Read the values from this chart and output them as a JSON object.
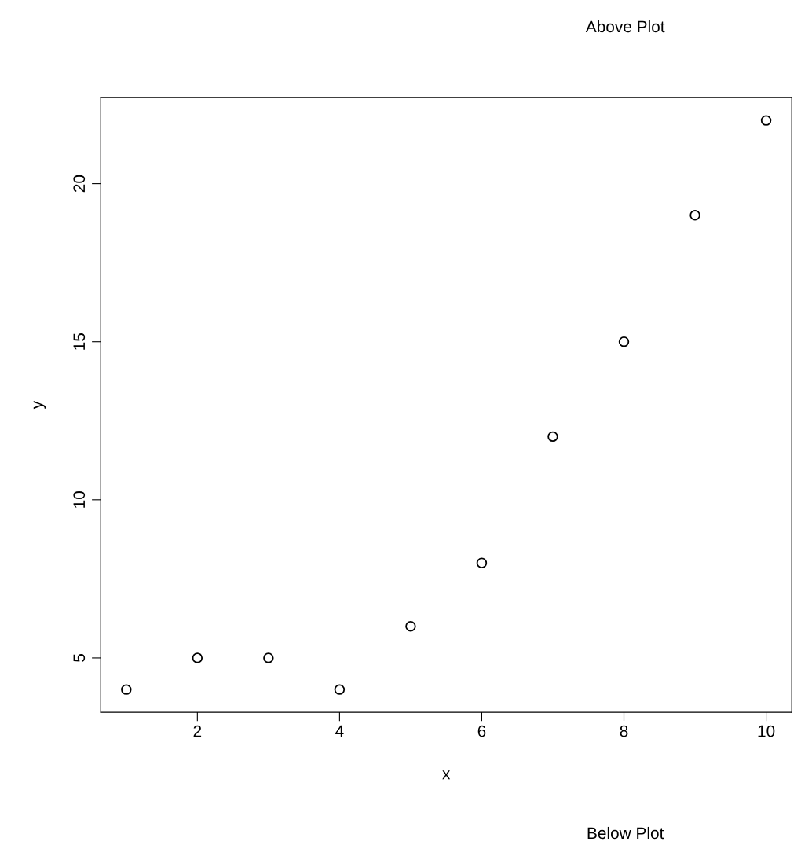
{
  "chart_data": {
    "type": "scatter",
    "xlabel": "x",
    "ylabel": "y",
    "x": [
      1,
      2,
      3,
      4,
      5,
      6,
      7,
      8,
      9,
      10
    ],
    "values": [
      4,
      5,
      5,
      4,
      6,
      8,
      12,
      15,
      19,
      22
    ],
    "color": "#000000",
    "marker": "circle",
    "xlim": [
      0.64,
      10.36
    ],
    "ylim": [
      3.28,
      22.72
    ],
    "xticks": [
      2,
      4,
      6,
      8,
      10
    ],
    "yticks": [
      5,
      10,
      15,
      20
    ],
    "grid": false,
    "legend": false,
    "annotations": [
      "Above Plot",
      "Below Plot"
    ]
  }
}
